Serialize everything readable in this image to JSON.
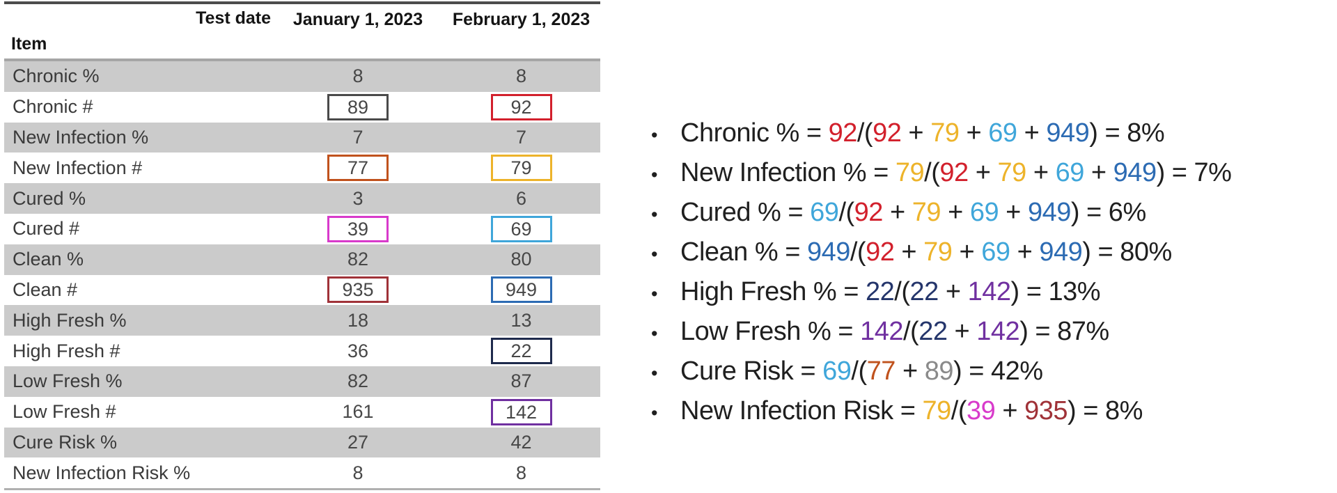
{
  "palette": {
    "black": "#1f1f1f",
    "red": "#d2202c",
    "gold": "#edb32a",
    "skyblue": "#3fa6da",
    "blue": "#2c6bb3",
    "navy": "#24356b",
    "navy_box": "#1e2a4c",
    "purple": "#7030a0",
    "rust": "#c0521d",
    "magenta": "#d83acb",
    "darkred": "#a03238",
    "grayval": "#8a8a8a",
    "graybox": "#4a4a4a",
    "row_shade": "#cbcbcb"
  },
  "table": {
    "header": {
      "test_date_label": "Test date",
      "item_label": "Item",
      "columns": [
        "January 1, 2023",
        "February 1, 2023"
      ]
    },
    "rows": [
      {
        "label": "Chronic %",
        "jan": "8",
        "feb": "8",
        "shaded": true
      },
      {
        "label": "Chronic #",
        "jan": "89",
        "feb": "92",
        "shaded": false,
        "jan_box": "graybox",
        "feb_box": "red"
      },
      {
        "label": "New Infection %",
        "jan": "7",
        "feb": "7",
        "shaded": true
      },
      {
        "label": "New Infection #",
        "jan": "77",
        "feb": "79",
        "shaded": false,
        "jan_box": "rust",
        "feb_box": "gold"
      },
      {
        "label": "Cured %",
        "jan": "3",
        "feb": "6",
        "shaded": true
      },
      {
        "label": "Cured #",
        "jan": "39",
        "feb": "69",
        "shaded": false,
        "jan_box": "magenta",
        "feb_box": "skyblue"
      },
      {
        "label": "Clean %",
        "jan": "82",
        "feb": "80",
        "shaded": true
      },
      {
        "label": "Clean #",
        "jan": "935",
        "feb": "949",
        "shaded": false,
        "jan_box": "darkred",
        "feb_box": "blue"
      },
      {
        "label": "High Fresh %",
        "jan": "18",
        "feb": "13",
        "shaded": true
      },
      {
        "label": "High Fresh #",
        "jan": "36",
        "feb": "22",
        "shaded": false,
        "feb_box": "navy_box"
      },
      {
        "label": "Low Fresh %",
        "jan": "82",
        "feb": "87",
        "shaded": true
      },
      {
        "label": "Low Fresh #",
        "jan": "161",
        "feb": "142",
        "shaded": false,
        "feb_box": "purple"
      },
      {
        "label": "Cure Risk %",
        "jan": "27",
        "feb": "42",
        "shaded": true
      },
      {
        "label": "New Infection Risk %",
        "jan": "8",
        "feb": "8",
        "shaded": false
      }
    ]
  },
  "bullets": [
    {
      "segments": [
        {
          "t": "Chronic % = "
        },
        {
          "t": "92",
          "c": "red"
        },
        {
          "t": "/("
        },
        {
          "t": "92",
          "c": "red"
        },
        {
          "t": " + "
        },
        {
          "t": "79",
          "c": "gold"
        },
        {
          "t": " + "
        },
        {
          "t": "69",
          "c": "skyblue"
        },
        {
          "t": " + "
        },
        {
          "t": "949",
          "c": "blue"
        },
        {
          "t": ") = 8%"
        }
      ]
    },
    {
      "segments": [
        {
          "t": "New Infection % = "
        },
        {
          "t": "79",
          "c": "gold"
        },
        {
          "t": "/("
        },
        {
          "t": "92",
          "c": "red"
        },
        {
          "t": " + "
        },
        {
          "t": "79",
          "c": "gold"
        },
        {
          "t": " + "
        },
        {
          "t": "69",
          "c": "skyblue"
        },
        {
          "t": " + "
        },
        {
          "t": "949",
          "c": "blue"
        },
        {
          "t": ") = 7%"
        }
      ]
    },
    {
      "segments": [
        {
          "t": "Cured % = "
        },
        {
          "t": "69",
          "c": "skyblue"
        },
        {
          "t": "/("
        },
        {
          "t": "92",
          "c": "red"
        },
        {
          "t": " + "
        },
        {
          "t": "79",
          "c": "gold"
        },
        {
          "t": " + "
        },
        {
          "t": "69",
          "c": "skyblue"
        },
        {
          "t": " + "
        },
        {
          "t": "949",
          "c": "blue"
        },
        {
          "t": ") = 6%"
        }
      ]
    },
    {
      "segments": [
        {
          "t": "Clean % = "
        },
        {
          "t": "949",
          "c": "blue"
        },
        {
          "t": "/("
        },
        {
          "t": "92",
          "c": "red"
        },
        {
          "t": " + "
        },
        {
          "t": "79",
          "c": "gold"
        },
        {
          "t": " + "
        },
        {
          "t": "69",
          "c": "skyblue"
        },
        {
          "t": " + "
        },
        {
          "t": "949",
          "c": "blue"
        },
        {
          "t": ") = 80%"
        }
      ]
    },
    {
      "segments": [
        {
          "t": "High Fresh % = "
        },
        {
          "t": "22",
          "c": "navy"
        },
        {
          "t": "/("
        },
        {
          "t": "22",
          "c": "navy"
        },
        {
          "t": " + "
        },
        {
          "t": "142",
          "c": "purple"
        },
        {
          "t": ") = 13%"
        }
      ]
    },
    {
      "segments": [
        {
          "t": "Low Fresh % = "
        },
        {
          "t": "142",
          "c": "purple"
        },
        {
          "t": "/("
        },
        {
          "t": "22",
          "c": "navy"
        },
        {
          "t": " + "
        },
        {
          "t": "142",
          "c": "purple"
        },
        {
          "t": ") = 87%"
        }
      ]
    },
    {
      "segments": [
        {
          "t": "Cure Risk = "
        },
        {
          "t": "69",
          "c": "skyblue"
        },
        {
          "t": "/("
        },
        {
          "t": "77",
          "c": "rust"
        },
        {
          "t": " + "
        },
        {
          "t": "89",
          "c": "grayval"
        },
        {
          "t": ") = 42%"
        }
      ]
    },
    {
      "segments": [
        {
          "t": "New Infection Risk = "
        },
        {
          "t": "79",
          "c": "gold"
        },
        {
          "t": "/("
        },
        {
          "t": "39",
          "c": "magenta"
        },
        {
          "t": " + "
        },
        {
          "t": "935",
          "c": "darkred"
        },
        {
          "t": ") = 8%"
        }
      ]
    }
  ]
}
